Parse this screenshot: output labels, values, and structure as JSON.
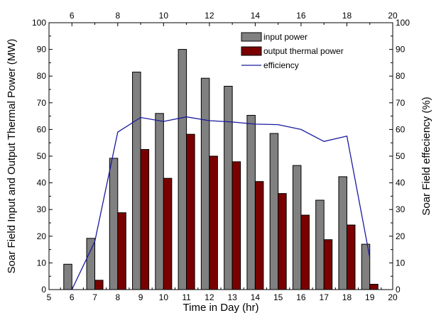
{
  "chart_data": {
    "type": "bar",
    "xlabel": "Time in Day (hr)",
    "ylabel": "Soar Field Input and Output Thermal Power (MW)",
    "y2label": "Soar Field effeciency (%)",
    "xlim": [
      5,
      20
    ],
    "ylim": [
      0,
      100
    ],
    "y2lim": [
      0,
      100
    ],
    "x_bottom_ticks": [
      5,
      6,
      7,
      8,
      9,
      10,
      11,
      12,
      13,
      14,
      15,
      16,
      17,
      18,
      19,
      20
    ],
    "x_top_ticks": [
      6,
      8,
      10,
      12,
      14,
      16,
      18,
      20
    ],
    "y_ticks": [
      0,
      10,
      20,
      30,
      40,
      50,
      60,
      70,
      80,
      90,
      100
    ],
    "y2_ticks": [
      0,
      10,
      20,
      30,
      40,
      50,
      60,
      70,
      80,
      90,
      100
    ],
    "categories": [
      6,
      7,
      8,
      9,
      10,
      11,
      12,
      13,
      14,
      15,
      16,
      17,
      18,
      19
    ],
    "series": [
      {
        "name": "input power",
        "kind": "bar",
        "color": "#808080",
        "values": [
          9.5,
          19.2,
          49.2,
          81.5,
          66.0,
          90.0,
          79.2,
          76.2,
          65.3,
          58.5,
          46.5,
          33.5,
          42.3,
          17.0
        ]
      },
      {
        "name": "output thermal power",
        "kind": "bar",
        "color": "#7a0000",
        "values": [
          0,
          3.5,
          28.8,
          52.5,
          41.7,
          58.2,
          50.0,
          47.9,
          40.5,
          36.0,
          27.9,
          18.7,
          24.2,
          2.0
        ]
      },
      {
        "name": "efficiency",
        "kind": "line",
        "axis": "right",
        "color": "#1a1aa0",
        "x": [
          6,
          7,
          8,
          9,
          10,
          11,
          12,
          13,
          14,
          15,
          16,
          17,
          18,
          19
        ],
        "values": [
          0,
          18,
          59,
          64.5,
          63,
          64.7,
          63.3,
          62.8,
          62,
          61.8,
          60,
          55.5,
          57.5,
          12
        ]
      }
    ],
    "legend_position": "top-right",
    "grid": false
  }
}
